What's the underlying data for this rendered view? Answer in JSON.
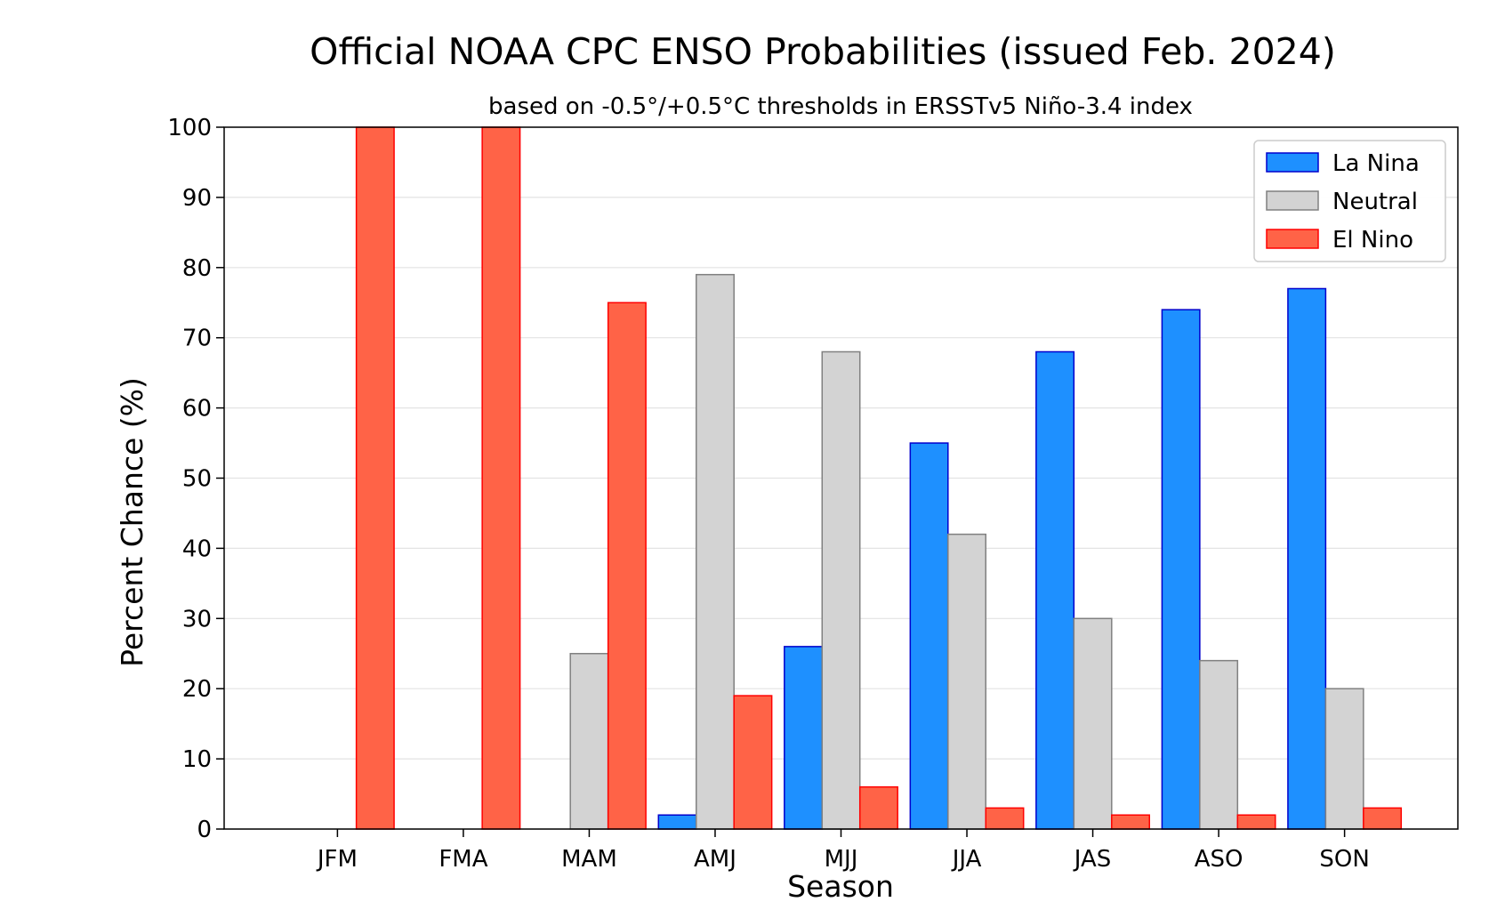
{
  "chart_data": {
    "type": "bar",
    "title": "Official NOAA CPC ENSO Probabilities (issued Feb. 2024)",
    "subtitle": "based on -0.5°/+0.5°C thresholds in ERSSTv5 Niño-3.4 index",
    "xlabel": "Season",
    "ylabel": "Percent Chance (%)",
    "ylim": [
      0,
      100
    ],
    "yticks": [
      0,
      10,
      20,
      30,
      40,
      50,
      60,
      70,
      80,
      90,
      100
    ],
    "categories": [
      "JFM",
      "FMA",
      "MAM",
      "AMJ",
      "MJJ",
      "JJA",
      "JAS",
      "ASO",
      "SON"
    ],
    "series": [
      {
        "name": "La Nina",
        "color": "#1E90FF",
        "edge": "#0000CD",
        "values": [
          0,
          0,
          0,
          2,
          26,
          55,
          68,
          74,
          77
        ]
      },
      {
        "name": "Neutral",
        "color": "#D3D3D3",
        "edge": "#808080",
        "values": [
          0,
          0,
          25,
          79,
          68,
          42,
          30,
          24,
          20
        ]
      },
      {
        "name": "El Nino",
        "color": "#FF6347",
        "edge": "#FF0000",
        "values": [
          100,
          100,
          75,
          19,
          6,
          3,
          2,
          2,
          3
        ]
      }
    ],
    "grid": "horizontal",
    "legend": "top-right"
  }
}
